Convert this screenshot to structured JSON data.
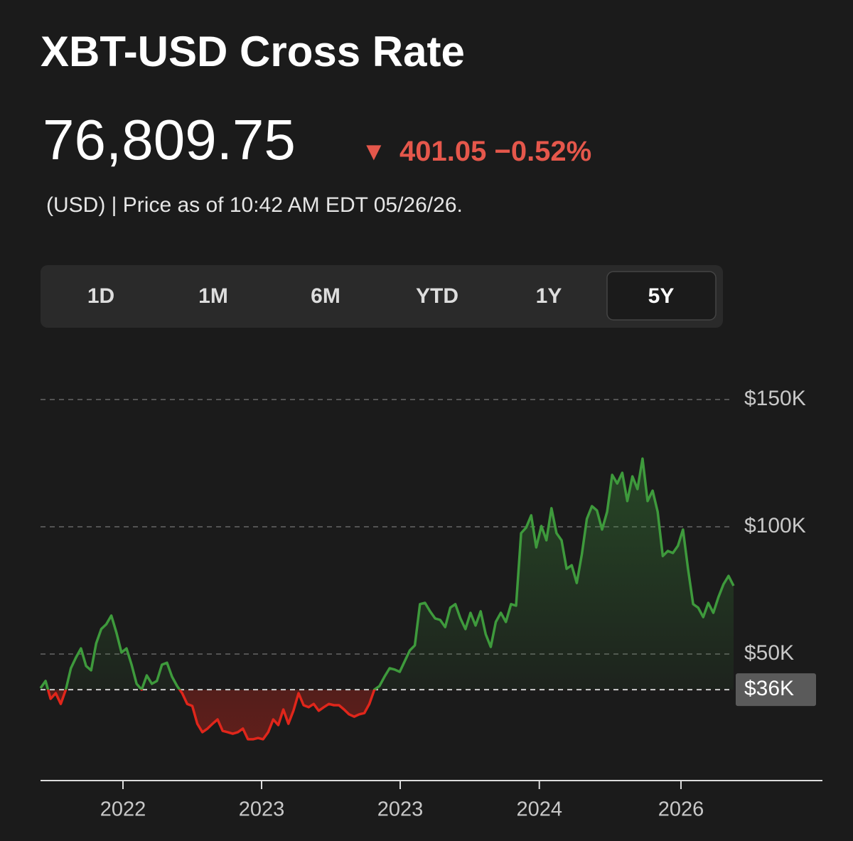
{
  "header": {
    "title": "XBT-USD Cross Rate",
    "price": "76,809.75",
    "change_arrow": "▼",
    "change": "401.05 −0.52%",
    "note": "(USD) | Price as of 10:42 AM EDT 05/26/26."
  },
  "tabs": {
    "items": [
      "1D",
      "1M",
      "6M",
      "YTD",
      "1Y",
      "5Y"
    ],
    "selected": 5
  },
  "chart_data": {
    "type": "line",
    "series": [
      {
        "color": "#3e9a3c",
        "down_color": "#e0261b",
        "values": [
          36600,
          39400,
          32400,
          34600,
          30400,
          36000,
          44400,
          48600,
          52200,
          45300,
          43600,
          54200,
          59800,
          61700,
          65100,
          58400,
          50600,
          52200,
          45800,
          38300,
          36000,
          41600,
          38300,
          39400,
          45800,
          46600,
          41100,
          37400,
          34600,
          30400,
          29600,
          22600,
          19300,
          20700,
          22600,
          24300,
          19800,
          19300,
          18700,
          19300,
          20700,
          16500,
          16500,
          17000,
          16500,
          19300,
          24300,
          22100,
          28200,
          22600,
          27700,
          34600,
          29900,
          29100,
          30400,
          27700,
          29100,
          30400,
          29900,
          29900,
          28200,
          26300,
          25400,
          26300,
          26800,
          30400,
          36000,
          37400,
          41100,
          44400,
          43900,
          43000,
          47200,
          51400,
          53400,
          69600,
          70100,
          66800,
          64000,
          63400,
          60600,
          68200,
          69600,
          64000,
          59800,
          66200,
          61200,
          66800,
          57800,
          52800,
          62600,
          66200,
          62600,
          69600,
          69000,
          97500,
          99700,
          104500,
          91900,
          100300,
          94700,
          107300,
          97500,
          94700,
          83500,
          84900,
          77900,
          89100,
          103100,
          108100,
          106400,
          98900,
          105900,
          120400,
          117000,
          121200,
          110100,
          119800,
          114800,
          126800,
          110100,
          114200,
          105900,
          88500,
          90500,
          89700,
          92500,
          98900,
          83500,
          69600,
          68200,
          64500,
          70100,
          66200,
          72300,
          77400,
          80700,
          76809.75
        ]
      }
    ],
    "baseline": {
      "value": 36000,
      "label": "$36K"
    },
    "ylim": [
      0,
      150000
    ],
    "yticks": [
      {
        "value": 150000,
        "label": "$150K"
      },
      {
        "value": 100000,
        "label": "$100K"
      },
      {
        "value": 50000,
        "label": "$50K"
      }
    ],
    "xlim": [
      0,
      154.6
    ],
    "xticks": [
      {
        "value": 16.3,
        "label": "2022"
      },
      {
        "value": 43.7,
        "label": "2023"
      },
      {
        "value": 71.1,
        "label": "2023"
      },
      {
        "value": 98.6,
        "label": "2024"
      },
      {
        "value": 126.6,
        "label": "2026"
      }
    ],
    "grid": true
  }
}
